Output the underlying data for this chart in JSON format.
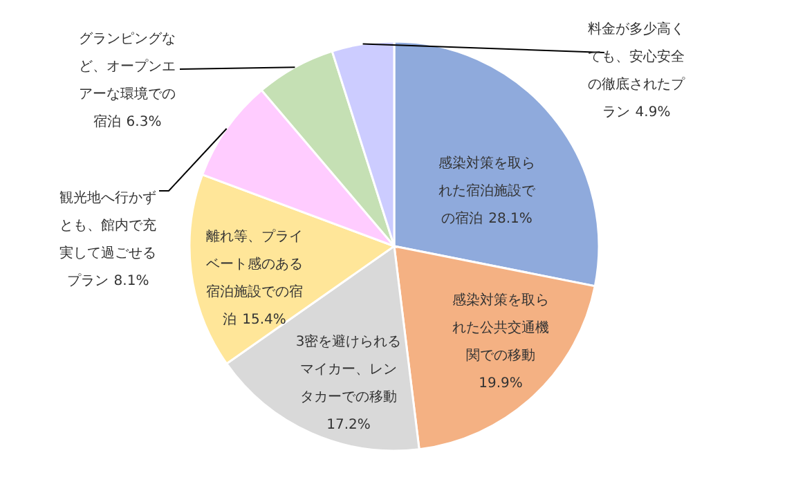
{
  "chart_data": {
    "type": "pie",
    "categories": [
      "感染対策を取られた宿泊施設での宿泊",
      "感染対策を取られた公共交通機関での移動",
      "3密を避けられるマイカー、レンタカーでの移動",
      "離れ等、プライベート感のある宿泊施設での宿泊",
      "観光地へ行かずとも、館内で充実して過ごせるプラン",
      "グランピングなど、オープンエアーな環境での宿泊",
      "料金が多少高くても、安心安全の徹底されたプラン"
    ],
    "values": [
      28.1,
      19.9,
      17.2,
      15.4,
      8.1,
      6.3,
      4.9
    ],
    "colors": [
      "#8faadc",
      "#f4b183",
      "#d9d9d9",
      "#ffe699",
      "#ffccff",
      "#c5e0b4",
      "#ccccff"
    ],
    "value_labels": [
      "28.1%",
      "19.9%",
      "17.2%",
      "15.4%",
      "8.1%",
      "6.3%",
      "4.9%"
    ]
  }
}
